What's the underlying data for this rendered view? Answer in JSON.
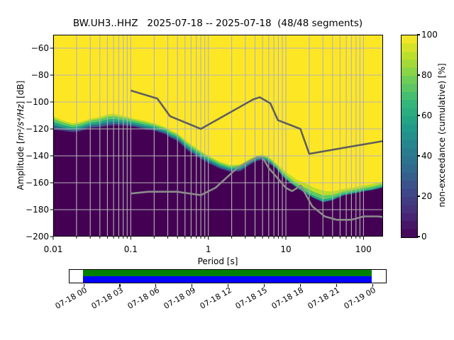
{
  "title": "BW.UH3..HHZ   2025-07-18 -- 2025-07-18  (48/48 segments)",
  "x_axis": {
    "label": "Period [s]",
    "tick_labels": [
      "0.01",
      "0.1",
      "1",
      "10",
      "100"
    ],
    "tick_values": [
      0.01,
      0.1,
      1,
      10,
      100
    ]
  },
  "y_axis": {
    "label_prefix": "Amplitude [",
    "label_units": "m²/s⁴/Hz",
    "label_suffix": "] [dB]",
    "ticks": [
      -60,
      -80,
      -100,
      -120,
      -140,
      -160,
      -180,
      -200
    ]
  },
  "colorbar": {
    "label": "non-exceedance (cumulative) [%]",
    "ticks": [
      0,
      20,
      40,
      60,
      80,
      100
    ],
    "gradient": [
      "#440154",
      "#482878",
      "#3e4989",
      "#31688e",
      "#26828e",
      "#1f9e89",
      "#35b779",
      "#6ece58",
      "#b5de2b",
      "#fde725"
    ]
  },
  "chart_data": {
    "type": "heatmap",
    "description": "PPSD cumulative non-exceedance distribution over period",
    "x_log_range": [
      0.01,
      179
    ],
    "y_range": [
      -200,
      -50
    ],
    "background_high": "#fde725",
    "grid": true,
    "grid_color": "#b3b3b3",
    "distribution": {
      "periods": [
        0.01,
        0.013,
        0.018,
        0.022,
        0.03,
        0.04,
        0.05,
        0.06,
        0.07,
        0.09,
        0.11,
        0.15,
        0.2,
        0.28,
        0.32,
        0.4,
        0.55,
        0.75,
        1.0,
        1.4,
        1.9,
        2.6,
        3.4,
        4.2,
        5.0,
        6.0,
        7.5,
        9.0,
        11,
        14,
        18,
        23,
        30,
        40,
        55,
        75,
        100,
        130,
        179
      ],
      "upper_db": [
        -109,
        -112.5,
        -115,
        -114,
        -111.5,
        -110,
        -108,
        -107.5,
        -108.5,
        -110,
        -111.5,
        -113,
        -115,
        -118,
        -120,
        -122.5,
        -129,
        -134.5,
        -139,
        -143.5,
        -146,
        -145.5,
        -141.5,
        -139,
        -138.5,
        -140,
        -144.5,
        -148,
        -151.5,
        -155.5,
        -157.5,
        -160.5,
        -163,
        -164.5,
        -163,
        -162,
        -160.5,
        -159.5,
        -157.5
      ],
      "lower_db": [
        -120.5,
        -121.5,
        -122.5,
        -122,
        -119.5,
        -119,
        -118,
        -117.5,
        -117.5,
        -118,
        -118.5,
        -120.5,
        -121.5,
        -124,
        -126.5,
        -129,
        -136.5,
        -141.5,
        -145.5,
        -149.5,
        -152,
        -151.5,
        -147,
        -144,
        -143,
        -145.5,
        -149.5,
        -155,
        -159.5,
        -164,
        -168,
        -171.5,
        -174.5,
        -173,
        -169.5,
        -168,
        -166.5,
        -165.5,
        -163.5
      ],
      "upper_tail_skew": [
        1.15,
        1.15,
        1.15,
        1.15,
        1.15,
        1.15,
        1.15,
        1.15,
        1.15,
        1.15,
        1.15,
        1.15,
        1.15,
        1.15,
        1.15,
        1.15,
        1.15,
        1.15,
        1.15,
        1.15,
        1.15,
        1.15,
        1.15,
        1.15,
        1.15,
        1.15,
        2.0,
        2.5,
        3.0,
        3.2,
        3.2,
        3.0,
        2.8,
        2.6,
        2.6,
        2.6,
        2.6,
        2.6,
        2.6
      ]
    },
    "band_levels": [
      {
        "f": 0.9,
        "color": "#bddf26"
      },
      {
        "f": 0.75,
        "color": "#5ec962"
      },
      {
        "f": 0.55,
        "color": "#21a585"
      },
      {
        "f": 0.35,
        "color": "#2e6e8e"
      },
      {
        "f": 0.15,
        "color": "#46327e"
      },
      {
        "f": 0.0,
        "color": "#440154"
      }
    ],
    "noise_models": {
      "high_model_color": "#5f5f5f",
      "low_model_color": "#8c8c8c",
      "high_model": [
        [
          0.1,
          -91.5
        ],
        [
          0.22,
          -97.4
        ],
        [
          0.32,
          -110.5
        ],
        [
          0.8,
          -120.0
        ],
        [
          3.8,
          -98.0
        ],
        [
          4.6,
          -96.5
        ],
        [
          6.3,
          -101.0
        ],
        [
          7.9,
          -113.5
        ],
        [
          15.4,
          -120.0
        ],
        [
          20.0,
          -138.5
        ],
        [
          179.0,
          -129.0
        ]
      ],
      "low_model": [
        [
          0.1,
          -168.0
        ],
        [
          0.17,
          -166.7
        ],
        [
          0.4,
          -166.7
        ],
        [
          0.8,
          -169.2
        ],
        [
          1.24,
          -163.7
        ],
        [
          2.4,
          -148.6
        ],
        [
          4.3,
          -141.1
        ],
        [
          5.0,
          -141.1
        ],
        [
          6.0,
          -149.0
        ],
        [
          10.0,
          -163.8
        ],
        [
          12.0,
          -166.2
        ],
        [
          15.6,
          -162.1
        ],
        [
          21.9,
          -177.5
        ],
        [
          31.6,
          -185.0
        ],
        [
          45.0,
          -187.5
        ],
        [
          70.0,
          -187.5
        ],
        [
          101.0,
          -185.0
        ],
        [
          154.0,
          -185.0
        ],
        [
          179.0,
          -185.5
        ]
      ]
    }
  },
  "timeline": {
    "labels": [
      "07-18 00",
      "07-18 03",
      "07-18 06",
      "07-18 09",
      "07-18 12",
      "07-18 15",
      "07-18 18",
      "07-18 21",
      "07-19 00"
    ],
    "processed_color": "#008000",
    "coverage_color": "#0000ff"
  }
}
